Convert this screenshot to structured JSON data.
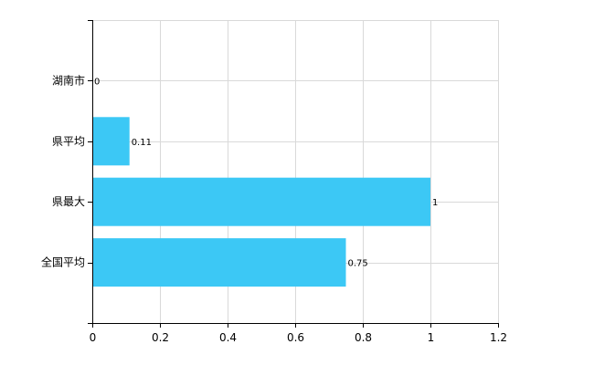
{
  "chart_data": {
    "type": "bar",
    "orientation": "horizontal",
    "categories": [
      "湖南市",
      "県平均",
      "県最大",
      "全国平均"
    ],
    "values": [
      0,
      0.11,
      1,
      0.75
    ],
    "data_labels": [
      "0",
      "0.11",
      "1",
      "0.75"
    ],
    "xlim": [
      0,
      1.2
    ],
    "x_ticks": [
      0,
      0.2,
      0.4,
      0.6,
      0.8,
      1,
      1.2
    ],
    "x_tick_labels": [
      "0",
      "0.2",
      "0.4",
      "0.6",
      "0.8",
      "1",
      "1.2"
    ],
    "grid": true,
    "bar_color": "#3cc8f5",
    "grid_color": "#d9d9d9"
  }
}
